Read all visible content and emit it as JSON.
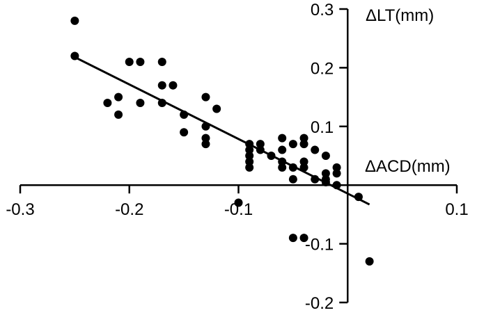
{
  "chart_data": {
    "type": "scatter",
    "title": "",
    "xlabel": "ΔACD(mm)",
    "ylabel": "ΔLT(mm)",
    "xlim": [
      -0.3,
      0.1
    ],
    "ylim": [
      -0.2,
      0.3
    ],
    "x_ticks": [
      -0.3,
      -0.2,
      -0.1,
      0.1
    ],
    "x_tick_labels": [
      "-0.3",
      "-0.2",
      "-0.1",
      "0.1"
    ],
    "y_ticks": [
      0.3,
      0.2,
      0.1,
      -0.1,
      -0.2
    ],
    "y_tick_labels": [
      "0.3",
      "0.2",
      "0.1",
      "-0.1",
      "-0.2"
    ],
    "grid": false,
    "legend": "none",
    "axes_cross_at_origin": true,
    "marker_color": "#000000",
    "fit_line": {
      "x": [
        -0.25,
        0.02
      ],
      "y": [
        0.218,
        -0.033
      ]
    },
    "points": [
      {
        "x": -0.25,
        "y": 0.28
      },
      {
        "x": -0.25,
        "y": 0.22
      },
      {
        "x": -0.22,
        "y": 0.14
      },
      {
        "x": -0.21,
        "y": 0.15
      },
      {
        "x": -0.21,
        "y": 0.12
      },
      {
        "x": -0.2,
        "y": 0.21
      },
      {
        "x": -0.19,
        "y": 0.21
      },
      {
        "x": -0.19,
        "y": 0.14
      },
      {
        "x": -0.17,
        "y": 0.21
      },
      {
        "x": -0.17,
        "y": 0.17
      },
      {
        "x": -0.16,
        "y": 0.17
      },
      {
        "x": -0.17,
        "y": 0.14
      },
      {
        "x": -0.15,
        "y": 0.12
      },
      {
        "x": -0.15,
        "y": 0.09
      },
      {
        "x": -0.13,
        "y": 0.15
      },
      {
        "x": -0.13,
        "y": 0.1
      },
      {
        "x": -0.13,
        "y": 0.08
      },
      {
        "x": -0.13,
        "y": 0.07
      },
      {
        "x": -0.12,
        "y": 0.13
      },
      {
        "x": -0.09,
        "y": 0.07
      },
      {
        "x": -0.09,
        "y": 0.06
      },
      {
        "x": -0.09,
        "y": 0.05
      },
      {
        "x": -0.09,
        "y": 0.04
      },
      {
        "x": -0.09,
        "y": 0.03
      },
      {
        "x": -0.08,
        "y": 0.07
      },
      {
        "x": -0.08,
        "y": 0.06
      },
      {
        "x": -0.07,
        "y": 0.05
      },
      {
        "x": -0.06,
        "y": 0.08
      },
      {
        "x": -0.06,
        "y": 0.06
      },
      {
        "x": -0.06,
        "y": 0.04
      },
      {
        "x": -0.06,
        "y": 0.03
      },
      {
        "x": -0.05,
        "y": 0.07
      },
      {
        "x": -0.05,
        "y": 0.03
      },
      {
        "x": -0.05,
        "y": 0.01
      },
      {
        "x": -0.04,
        "y": 0.08
      },
      {
        "x": -0.04,
        "y": 0.07
      },
      {
        "x": -0.04,
        "y": 0.04
      },
      {
        "x": -0.04,
        "y": 0.03
      },
      {
        "x": -0.03,
        "y": 0.06
      },
      {
        "x": -0.03,
        "y": 0.01
      },
      {
        "x": -0.02,
        "y": 0.05
      },
      {
        "x": -0.02,
        "y": 0.02
      },
      {
        "x": -0.02,
        "y": 0.01
      },
      {
        "x": -0.02,
        "y": 0.005
      },
      {
        "x": -0.01,
        "y": 0.03
      },
      {
        "x": -0.01,
        "y": 0.02
      },
      {
        "x": -0.01,
        "y": 0.0
      },
      {
        "x": 0.01,
        "y": -0.02
      },
      {
        "x": -0.1,
        "y": -0.03
      },
      {
        "x": -0.05,
        "y": -0.09
      },
      {
        "x": -0.04,
        "y": -0.09
      },
      {
        "x": 0.02,
        "y": -0.13
      }
    ]
  }
}
